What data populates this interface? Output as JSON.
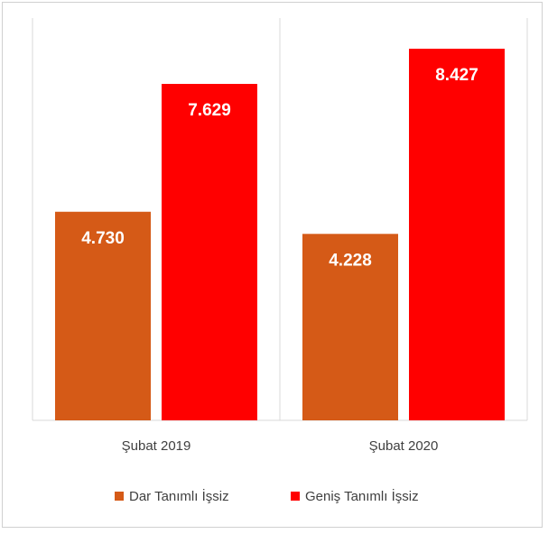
{
  "chart_data": {
    "type": "bar",
    "categories": [
      "Şubat 2019",
      "Şubat 2020"
    ],
    "series": [
      {
        "name": "Dar Tanımlı İşsiz",
        "color": "#d55a17",
        "values": [
          4.73,
          4.228
        ],
        "value_labels": [
          "4.730",
          "4.228"
        ]
      },
      {
        "name": "Geniş Tanımlı İşsiz",
        "color": "#ff0000",
        "values": [
          7.629,
          8.427
        ],
        "value_labels": [
          "7.629",
          "8.427"
        ]
      }
    ],
    "ylim": [
      0,
      9
    ],
    "legend": "bottom"
  }
}
